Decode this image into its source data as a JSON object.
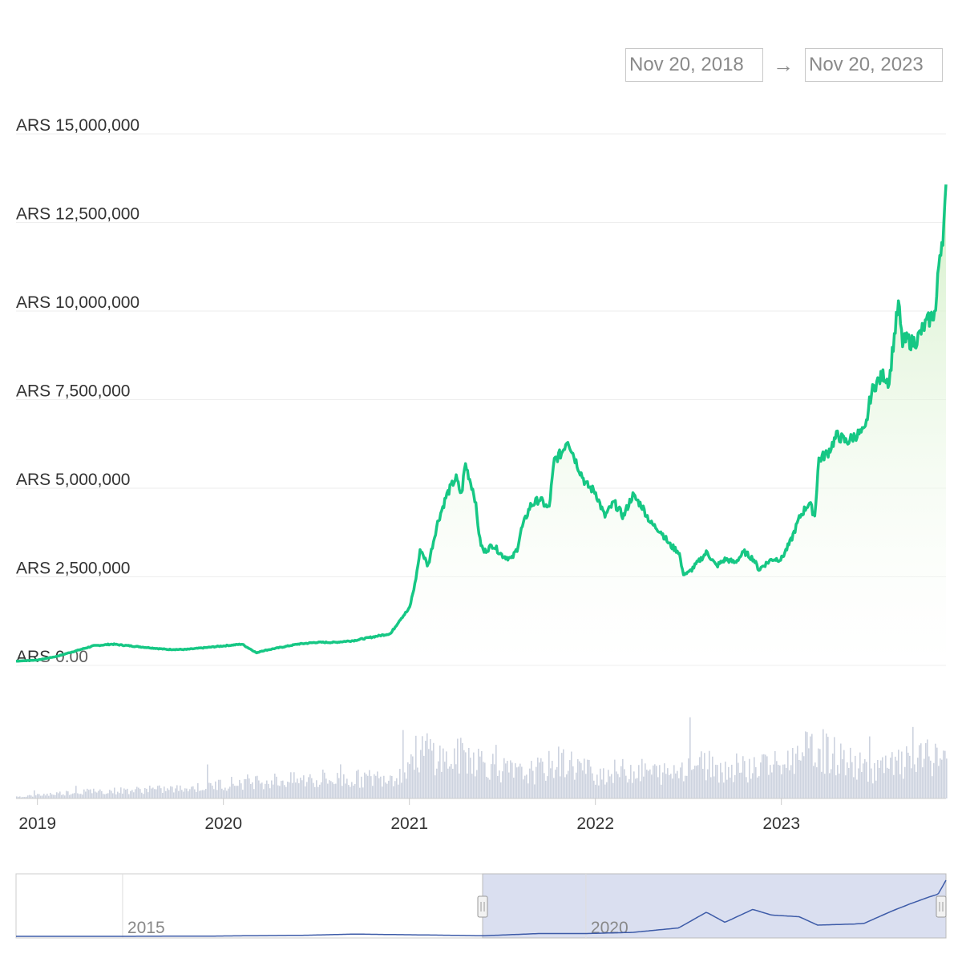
{
  "range_selector": {
    "from": "Nov 20, 2018",
    "to": "Nov 20, 2023",
    "separator": "→"
  },
  "colors": {
    "price_line": "#16c784",
    "area_top": "#d9f2d0",
    "volume_bar": "#cdd3df",
    "navigator_line": "#3d5ba8",
    "navigator_mask": "#d6dcee"
  },
  "chart_data": [
    {
      "type": "line",
      "series": [
        {
          "values_label": "price"
        }
      ],
      "y_ticks": [
        "ARS 15,000,000",
        "ARS 12,500,000",
        "ARS 10,000,000",
        "ARS 7,500,000",
        "ARS 5,000,000",
        "ARS 2,500,000",
        "ARS 0.00"
      ],
      "y_tick_values": [
        15000000,
        12500000,
        10000000,
        7500000,
        5000000,
        2500000,
        0
      ],
      "ylim": [
        0,
        15000000
      ],
      "x_ticks": [
        "2019",
        "2020",
        "2021",
        "2022",
        "2023"
      ],
      "x_tick_values": [
        2019.0,
        2020.0,
        2021.0,
        2022.0,
        2023.0
      ],
      "xlim": [
        2018.885,
        2023.885
      ],
      "grid": true,
      "x": [
        2018.885,
        2019.0,
        2019.1,
        2019.2,
        2019.3,
        2019.4,
        2019.5,
        2019.6,
        2019.7,
        2019.8,
        2019.9,
        2020.0,
        2020.1,
        2020.18,
        2020.2,
        2020.3,
        2020.4,
        2020.5,
        2020.6,
        2020.7,
        2020.8,
        2020.9,
        2020.95,
        2021.0,
        2021.03,
        2021.06,
        2021.1,
        2021.15,
        2021.2,
        2021.25,
        2021.28,
        2021.3,
        2021.35,
        2021.38,
        2021.4,
        2021.45,
        2021.5,
        2021.55,
        2021.58,
        2021.6,
        2021.65,
        2021.7,
        2021.75,
        2021.78,
        2021.82,
        2021.85,
        2021.9,
        2021.95,
        2022.0,
        2022.05,
        2022.1,
        2022.15,
        2022.2,
        2022.25,
        2022.3,
        2022.35,
        2022.4,
        2022.45,
        2022.47,
        2022.5,
        2022.55,
        2022.6,
        2022.65,
        2022.7,
        2022.75,
        2022.8,
        2022.85,
        2022.88,
        2022.9,
        2022.95,
        2023.0,
        2023.05,
        2023.1,
        2023.15,
        2023.18,
        2023.2,
        2023.25,
        2023.3,
        2023.35,
        2023.4,
        2023.45,
        2023.48,
        2023.5,
        2023.55,
        2023.58,
        2023.6,
        2023.63,
        2023.65,
        2023.68,
        2023.7,
        2023.73,
        2023.76,
        2023.8,
        2023.83,
        2023.85,
        2023.87,
        2023.885
      ],
      "y": [
        120000,
        150000,
        250000,
        400000,
        550000,
        600000,
        550000,
        500000,
        450000,
        450000,
        500000,
        550000,
        600000,
        350000,
        400000,
        500000,
        600000,
        650000,
        650000,
        700000,
        800000,
        900000,
        1300000,
        1600000,
        2300000,
        3300000,
        2800000,
        4000000,
        4800000,
        5300000,
        4800000,
        5700000,
        4800000,
        3500000,
        3200000,
        3400000,
        3100000,
        3000000,
        3300000,
        3800000,
        4500000,
        4700000,
        4400000,
        5800000,
        6000000,
        6400000,
        5700000,
        5100000,
        4900000,
        4200000,
        4600000,
        4200000,
        4800000,
        4500000,
        4000000,
        3800000,
        3400000,
        3200000,
        2600000,
        2600000,
        2900000,
        3200000,
        2800000,
        3000000,
        2900000,
        3200000,
        3000000,
        2700000,
        2800000,
        3000000,
        3000000,
        3500000,
        4200000,
        4600000,
        4200000,
        5800000,
        6000000,
        6500000,
        6300000,
        6500000,
        6600000,
        7600000,
        7900000,
        8200000,
        8000000,
        9000000,
        10200000,
        9100000,
        9200000,
        9100000,
        9200000,
        9500000,
        9800000,
        10000000,
        11600000,
        12200000,
        13300000
      ]
    },
    {
      "type": "bar",
      "values_label": "volume (relative)",
      "x": [
        2018.885,
        2019.2,
        2019.5,
        2019.8,
        2020.0,
        2020.2,
        2020.5,
        2020.8,
        2020.95,
        2021.0,
        2021.1,
        2021.2,
        2021.3,
        2021.4,
        2021.5,
        2021.6,
        2021.7,
        2021.8,
        2021.9,
        2022.0,
        2022.2,
        2022.4,
        2022.5,
        2022.7,
        2022.9,
        2023.0,
        2023.1,
        2023.2,
        2023.3,
        2023.4,
        2023.5,
        2023.6,
        2023.7,
        2023.8,
        2023.885
      ],
      "y": [
        0.02,
        0.08,
        0.1,
        0.12,
        0.18,
        0.22,
        0.22,
        0.25,
        0.3,
        0.5,
        0.6,
        0.45,
        0.55,
        0.45,
        0.35,
        0.3,
        0.35,
        0.45,
        0.4,
        0.3,
        0.35,
        0.3,
        0.45,
        0.35,
        0.4,
        0.4,
        0.55,
        0.6,
        0.5,
        0.4,
        0.35,
        0.4,
        0.45,
        0.5,
        0.55
      ]
    },
    {
      "type": "line",
      "values_label": "navigator",
      "x_ticks": [
        "2015",
        "2020"
      ],
      "x_tick_values": [
        2015.0,
        2020.0
      ],
      "xlim": [
        2013.85,
        2023.885
      ],
      "selection": [
        2018.885,
        2023.885
      ],
      "x": [
        2013.85,
        2015.0,
        2016.0,
        2017.0,
        2017.5,
        2018.0,
        2018.5,
        2018.885,
        2019.5,
        2020.0,
        2020.5,
        2021.0,
        2021.3,
        2021.5,
        2021.8,
        2022.0,
        2022.3,
        2022.5,
        2022.9,
        2023.0,
        2023.3,
        2023.5,
        2023.7,
        2023.8,
        2023.885
      ],
      "y": [
        0.0,
        0.0,
        0.005,
        0.02,
        0.04,
        0.03,
        0.02,
        0.01,
        0.05,
        0.05,
        0.07,
        0.15,
        0.43,
        0.25,
        0.48,
        0.38,
        0.35,
        0.2,
        0.22,
        0.23,
        0.45,
        0.58,
        0.7,
        0.75,
        1.0
      ]
    }
  ]
}
